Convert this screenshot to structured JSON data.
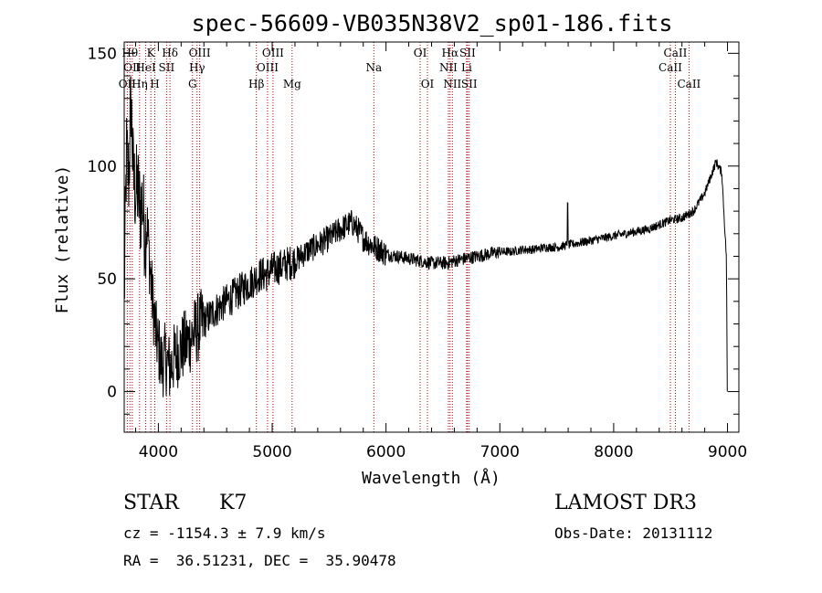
{
  "chart_data": {
    "type": "line",
    "title": "spec-56609-VB035N38V2_sp01-186.fits",
    "xlabel": "Wavelength (Å)",
    "ylabel": "Flux (relative)",
    "xlim": [
      3700,
      9100
    ],
    "ylim": [
      -18,
      155
    ],
    "xticks": [
      4000,
      5000,
      6000,
      7000,
      8000,
      9000
    ],
    "yticks": [
      0,
      50,
      100,
      150
    ],
    "grid": false,
    "series": [
      {
        "name": "flux",
        "x": [
          3700,
          3720,
          3740,
          3760,
          3780,
          3800,
          3820,
          3840,
          3860,
          3880,
          3900,
          3920,
          3940,
          3960,
          3980,
          4000,
          4030,
          4060,
          4100,
          4140,
          4180,
          4220,
          4260,
          4300,
          4340,
          4380,
          4420,
          4460,
          4500,
          4550,
          4600,
          4650,
          4700,
          4750,
          4800,
          4850,
          4900,
          4950,
          5000,
          5050,
          5100,
          5150,
          5200,
          5300,
          5400,
          5500,
          5600,
          5700,
          5750,
          5800,
          5850,
          5900,
          5950,
          6000,
          6100,
          6200,
          6300,
          6400,
          6500,
          6550,
          6600,
          6700,
          6800,
          6900,
          7000,
          7100,
          7200,
          7300,
          7400,
          7500,
          7600,
          7700,
          7800,
          7900,
          8000,
          8100,
          8200,
          8300,
          8400,
          8500,
          8600,
          8700,
          8800,
          8850,
          8900,
          8950,
          9000
        ],
        "y": [
          40,
          105,
          95,
          130,
          95,
          88,
          90,
          80,
          85,
          70,
          75,
          60,
          45,
          35,
          25,
          20,
          12,
          15,
          10,
          15,
          18,
          20,
          22,
          25,
          28,
          30,
          32,
          34,
          36,
          38,
          40,
          42,
          44,
          46,
          48,
          50,
          52,
          52,
          54,
          55,
          56,
          57,
          58,
          62,
          65,
          68,
          72,
          75,
          72,
          68,
          66,
          64,
          63,
          61,
          60,
          59,
          58,
          57,
          57,
          57,
          58,
          59,
          60,
          61,
          62,
          62,
          63,
          63,
          64,
          64,
          65,
          66,
          67,
          68,
          69,
          70,
          71,
          72,
          74,
          76,
          77,
          80,
          88,
          95,
          102,
          97,
          50
        ]
      }
    ],
    "lines": [
      {
        "wl": 3727,
        "labels": [
          {
            "t": "OII",
            "row": 3
          }
        ]
      },
      {
        "wl": 3750,
        "labels": [
          {
            "t": "Hθ",
            "row": 1
          }
        ]
      },
      {
        "wl": 3771,
        "labels": [
          {
            "t": "OII",
            "row": 2
          }
        ]
      },
      {
        "wl": 3835,
        "labels": [
          {
            "t": "Hη",
            "row": 3
          }
        ]
      },
      {
        "wl": 3889,
        "labels": [
          {
            "t": "HeI",
            "row": 2
          }
        ]
      },
      {
        "wl": 3934,
        "labels": [
          {
            "t": "K",
            "row": 1
          }
        ]
      },
      {
        "wl": 3969,
        "labels": [
          {
            "t": "H",
            "row": 3
          }
        ]
      },
      {
        "wl": 4072,
        "labels": [
          {
            "t": "SII",
            "row": 2
          }
        ]
      },
      {
        "wl": 4102,
        "labels": [
          {
            "t": "Hδ",
            "row": 1
          }
        ]
      },
      {
        "wl": 4300,
        "labels": [
          {
            "t": "G",
            "row": 3
          }
        ]
      },
      {
        "wl": 4340,
        "labels": [
          {
            "t": "Hγ",
            "row": 2
          }
        ]
      },
      {
        "wl": 4363,
        "labels": [
          {
            "t": "OIII",
            "row": 1
          }
        ]
      },
      {
        "wl": 4861,
        "labels": [
          {
            "t": "Hβ",
            "row": 3
          }
        ]
      },
      {
        "wl": 4959,
        "labels": [
          {
            "t": "OIII",
            "row": 2
          }
        ]
      },
      {
        "wl": 5007,
        "labels": [
          {
            "t": "OIII",
            "row": 1
          }
        ]
      },
      {
        "wl": 5175,
        "labels": [
          {
            "t": "Mg",
            "row": 3
          }
        ]
      },
      {
        "wl": 5893,
        "labels": [
          {
            "t": "Na",
            "row": 2
          }
        ]
      },
      {
        "wl": 6300,
        "labels": [
          {
            "t": "OI",
            "row": 1
          }
        ]
      },
      {
        "wl": 6364,
        "labels": [
          {
            "t": "OI",
            "row": 3
          }
        ]
      },
      {
        "wl": 6548,
        "labels": [
          {
            "t": "NII",
            "row": 2
          }
        ]
      },
      {
        "wl": 6563,
        "labels": [
          {
            "t": "Hα",
            "row": 1
          }
        ]
      },
      {
        "wl": 6583,
        "labels": [
          {
            "t": "NII",
            "row": 3
          }
        ]
      },
      {
        "wl": 6708,
        "labels": [
          {
            "t": "Li",
            "row": 2
          }
        ]
      },
      {
        "wl": 6716,
        "labels": [
          {
            "t": "SII",
            "row": 1
          }
        ]
      },
      {
        "wl": 6731,
        "labels": [
          {
            "t": "SII",
            "row": 3
          }
        ]
      },
      {
        "wl": 8498,
        "labels": [
          {
            "t": "CaII",
            "row": 2
          }
        ]
      },
      {
        "wl": 8542,
        "labels": [
          {
            "t": "CaII",
            "row": 1
          }
        ]
      },
      {
        "wl": 8662,
        "labels": [
          {
            "t": "CaII",
            "row": 3
          }
        ]
      }
    ]
  },
  "info": {
    "object_class": "STAR",
    "subclass": "K7",
    "redshift_line": "cz = -1154.3 ± 7.9 km/s",
    "coords_line": "RA =  36.51231, DEC =  35.90478",
    "survey": "LAMOST DR3",
    "obs_date": "Obs-Date: 20131112"
  }
}
